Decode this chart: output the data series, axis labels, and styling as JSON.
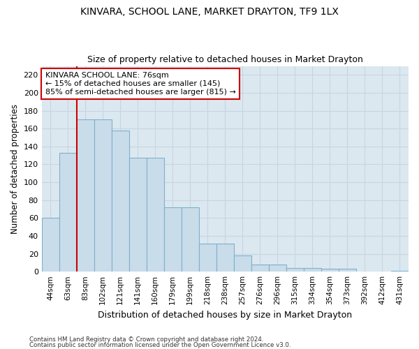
{
  "title": "KINVARA, SCHOOL LANE, MARKET DRAYTON, TF9 1LX",
  "subtitle": "Size of property relative to detached houses in Market Drayton",
  "xlabel": "Distribution of detached houses by size in Market Drayton",
  "ylabel": "Number of detached properties",
  "categories": [
    "44sqm",
    "63sqm",
    "83sqm",
    "102sqm",
    "121sqm",
    "141sqm",
    "160sqm",
    "179sqm",
    "199sqm",
    "218sqm",
    "238sqm",
    "257sqm",
    "276sqm",
    "296sqm",
    "315sqm",
    "334sqm",
    "354sqm",
    "373sqm",
    "392sqm",
    "412sqm",
    "431sqm"
  ],
  "values": [
    60,
    133,
    170,
    170,
    158,
    127,
    127,
    72,
    72,
    31,
    31,
    18,
    8,
    8,
    4,
    4,
    3,
    3,
    0,
    0,
    1
  ],
  "bar_color": "#c9dcea",
  "bar_edge_color": "#7fb0cc",
  "vline_x": 1.5,
  "vline_color": "#cc0000",
  "annotation_text": "KINVARA SCHOOL LANE: 76sqm\n← 15% of detached houses are smaller (145)\n85% of semi-detached houses are larger (815) →",
  "annotation_box_color": "#ffffff",
  "annotation_box_edge": "#cc0000",
  "ylim": [
    0,
    230
  ],
  "yticks": [
    0,
    20,
    40,
    60,
    80,
    100,
    120,
    140,
    160,
    180,
    200,
    220
  ],
  "grid_color": "#c8d4e0",
  "background_color": "#dce8f0",
  "fig_background": "#ffffff",
  "footer1": "Contains HM Land Registry data © Crown copyright and database right 2024.",
  "footer2": "Contains public sector information licensed under the Open Government Licence v3.0."
}
